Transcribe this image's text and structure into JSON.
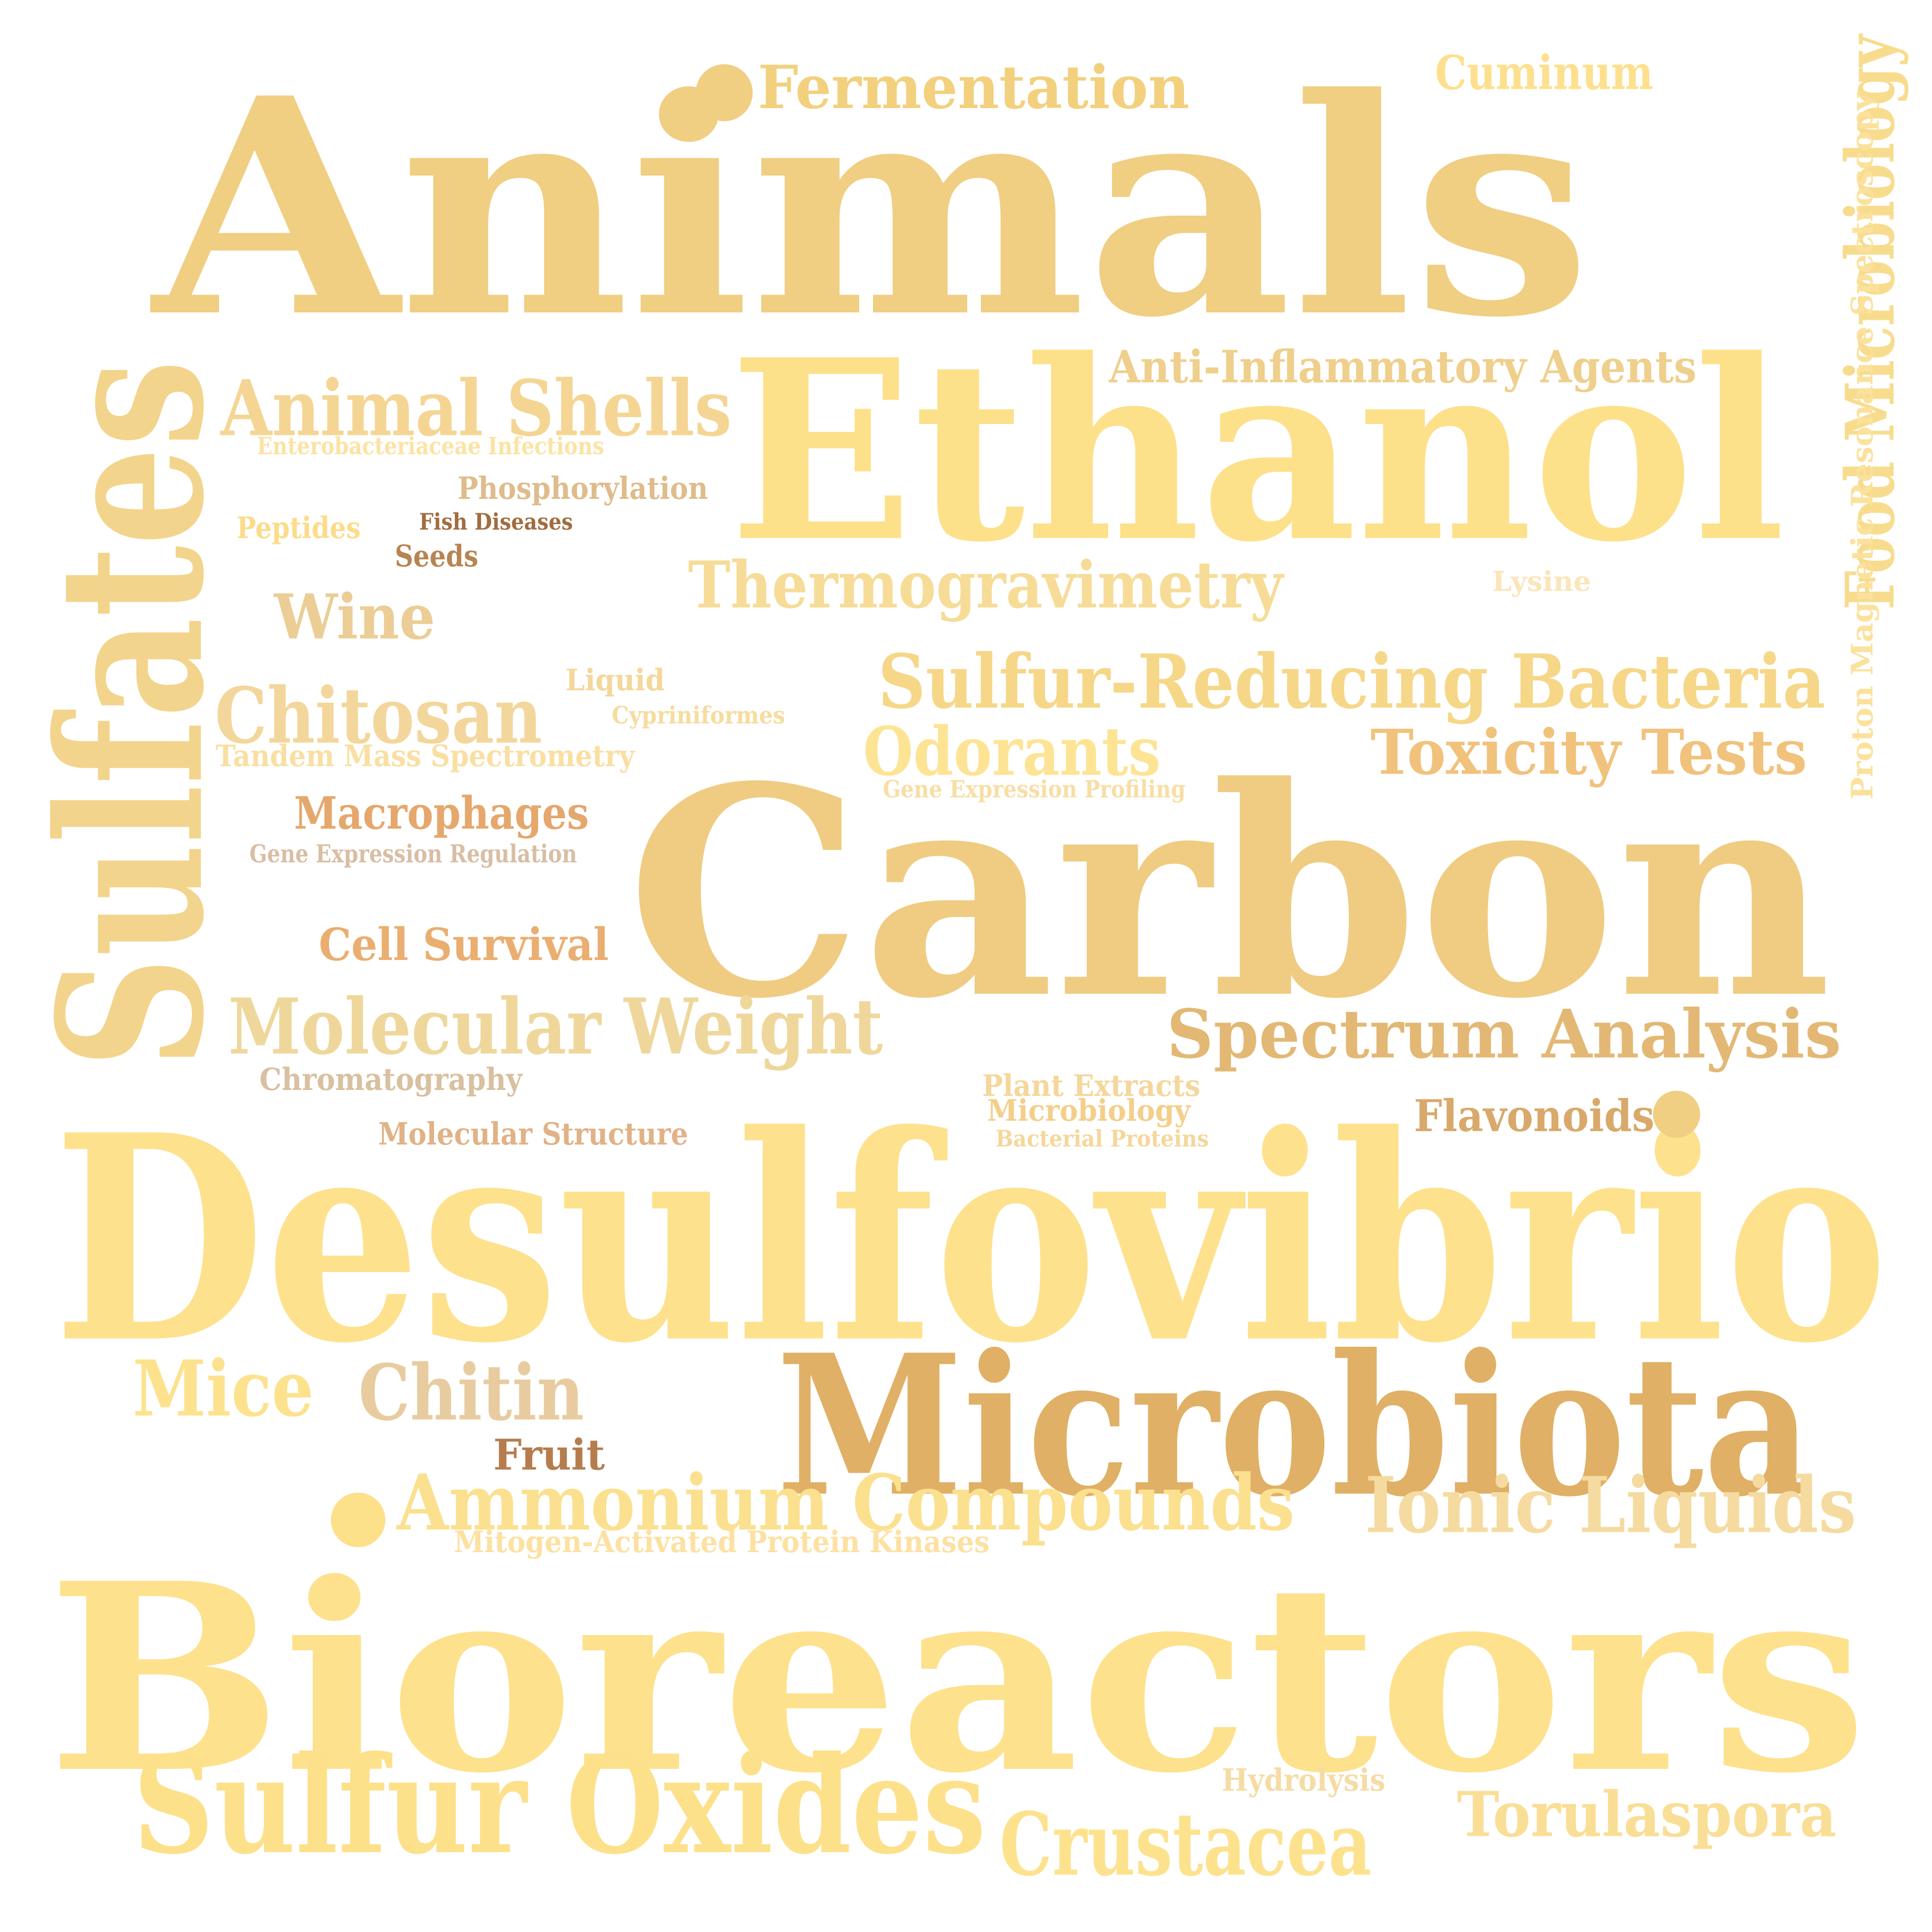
{
  "words": [
    {
      "text": "Animals",
      "color": "#f0ce82",
      "vertical": false
    },
    {
      "text": "Fermentation",
      "color": "#f2d07e",
      "vertical": false
    },
    {
      "text": "Cuminum",
      "color": "#fde08e",
      "vertical": false
    },
    {
      "text": "Food Microbiology",
      "color": "#f8dc8e",
      "vertical": true
    },
    {
      "text": "Proton Magnetic Resonance Spectroscopy",
      "color": "#fbe19c",
      "vertical": true
    },
    {
      "text": "Sulfates",
      "color": "#f3d48c",
      "vertical": true
    },
    {
      "text": "Animal Shells",
      "color": "#f5d593",
      "vertical": false
    },
    {
      "text": "Ethanol",
      "color": "#fde08a",
      "vertical": false
    },
    {
      "text": "Anti-Inflammatory Agents",
      "color": "#efcf8c",
      "vertical": false
    },
    {
      "text": "Enterobacteriaceae Infections",
      "color": "#fbe3a4",
      "vertical": false
    },
    {
      "text": "Phosphorylation",
      "color": "#dfbc8c",
      "vertical": false
    },
    {
      "text": "Peptides",
      "color": "#fcdc8c",
      "vertical": false
    },
    {
      "text": "Fish Diseases",
      "color": "#a16d40",
      "vertical": false
    },
    {
      "text": "Seeds",
      "color": "#b78552",
      "vertical": false
    },
    {
      "text": "Thermogravimetry",
      "color": "#f6dc97",
      "vertical": false
    },
    {
      "text": "Lysine",
      "color": "#fbe5b9",
      "vertical": false
    },
    {
      "text": "Wine",
      "color": "#ebcd95",
      "vertical": false
    },
    {
      "text": "Sulfur-Reducing Bacteria",
      "color": "#f6d788",
      "vertical": false
    },
    {
      "text": "Liquid",
      "color": "#f4d79a",
      "vertical": false
    },
    {
      "text": "Chitosan",
      "color": "#f3d69b",
      "vertical": false
    },
    {
      "text": "Cypriniformes",
      "color": "#f6dc9e",
      "vertical": false
    },
    {
      "text": "Toxicity Tests",
      "color": "#f1c27c",
      "vertical": false
    },
    {
      "text": "Tandem Mass Spectrometry",
      "color": "#f9dfa2",
      "vertical": false
    },
    {
      "text": "Odorants",
      "color": "#fde494",
      "vertical": false
    },
    {
      "text": "Gene Expression Profiling",
      "color": "#f8dea5",
      "vertical": false
    },
    {
      "text": "Macrophages",
      "color": "#e5a76c",
      "vertical": false
    },
    {
      "text": "Carbon",
      "color": "#efcc82",
      "vertical": false
    },
    {
      "text": "Gene Expression Regulation",
      "color": "#d9bea4",
      "vertical": false
    },
    {
      "text": "Cell Survival",
      "color": "#eaae70",
      "vertical": false
    },
    {
      "text": "Molecular Weight",
      "color": "#efd79c",
      "vertical": false
    },
    {
      "text": "Spectrum Analysis",
      "color": "#e3b874",
      "vertical": false
    },
    {
      "text": "Chromatography",
      "color": "#d8c0a0",
      "vertical": false
    },
    {
      "text": "Plant Extracts",
      "color": "#f5d69b",
      "vertical": false
    },
    {
      "text": "Microbiology",
      "color": "#f3cf8a",
      "vertical": false
    },
    {
      "text": "Flavonoids",
      "color": "#d9a96b",
      "vertical": false
    },
    {
      "text": "Bacterial Proteins",
      "color": "#f5d79b",
      "vertical": false
    },
    {
      "text": "Molecular Structure",
      "color": "#e0b286",
      "vertical": false
    },
    {
      "text": "Desulfovibrio",
      "color": "#fde18c",
      "vertical": false
    },
    {
      "text": "Microbiota",
      "color": "#e0b066",
      "vertical": false
    },
    {
      "text": "Mice",
      "color": "#fde28e",
      "vertical": false
    },
    {
      "text": "Chitin",
      "color": "#e8cca0",
      "vertical": false
    },
    {
      "text": "Fruit",
      "color": "#b57d4e",
      "vertical": false
    },
    {
      "text": "Ammonium Compounds",
      "color": "#fbe08f",
      "vertical": false
    },
    {
      "text": "Ionic Liquids",
      "color": "#f5dba0",
      "vertical": false
    },
    {
      "text": "Mitogen-Activated Protein Kinases",
      "color": "#fde1a2",
      "vertical": false
    },
    {
      "text": "Bioreactors",
      "color": "#fde18c",
      "vertical": false
    },
    {
      "text": "Sulfur Oxides",
      "color": "#fde08a",
      "vertical": false
    },
    {
      "text": "Hydrolysis",
      "color": "#f5dca5",
      "vertical": false
    },
    {
      "text": "Crustacea",
      "color": "#fde28e",
      "vertical": false
    },
    {
      "text": "Torulaspora",
      "color": "#f9de95",
      "vertical": false
    }
  ],
  "dots": [
    {
      "color": "#f0ce82"
    },
    {
      "color": "#f0ce82"
    },
    {
      "color": "#fde08a"
    }
  ]
}
